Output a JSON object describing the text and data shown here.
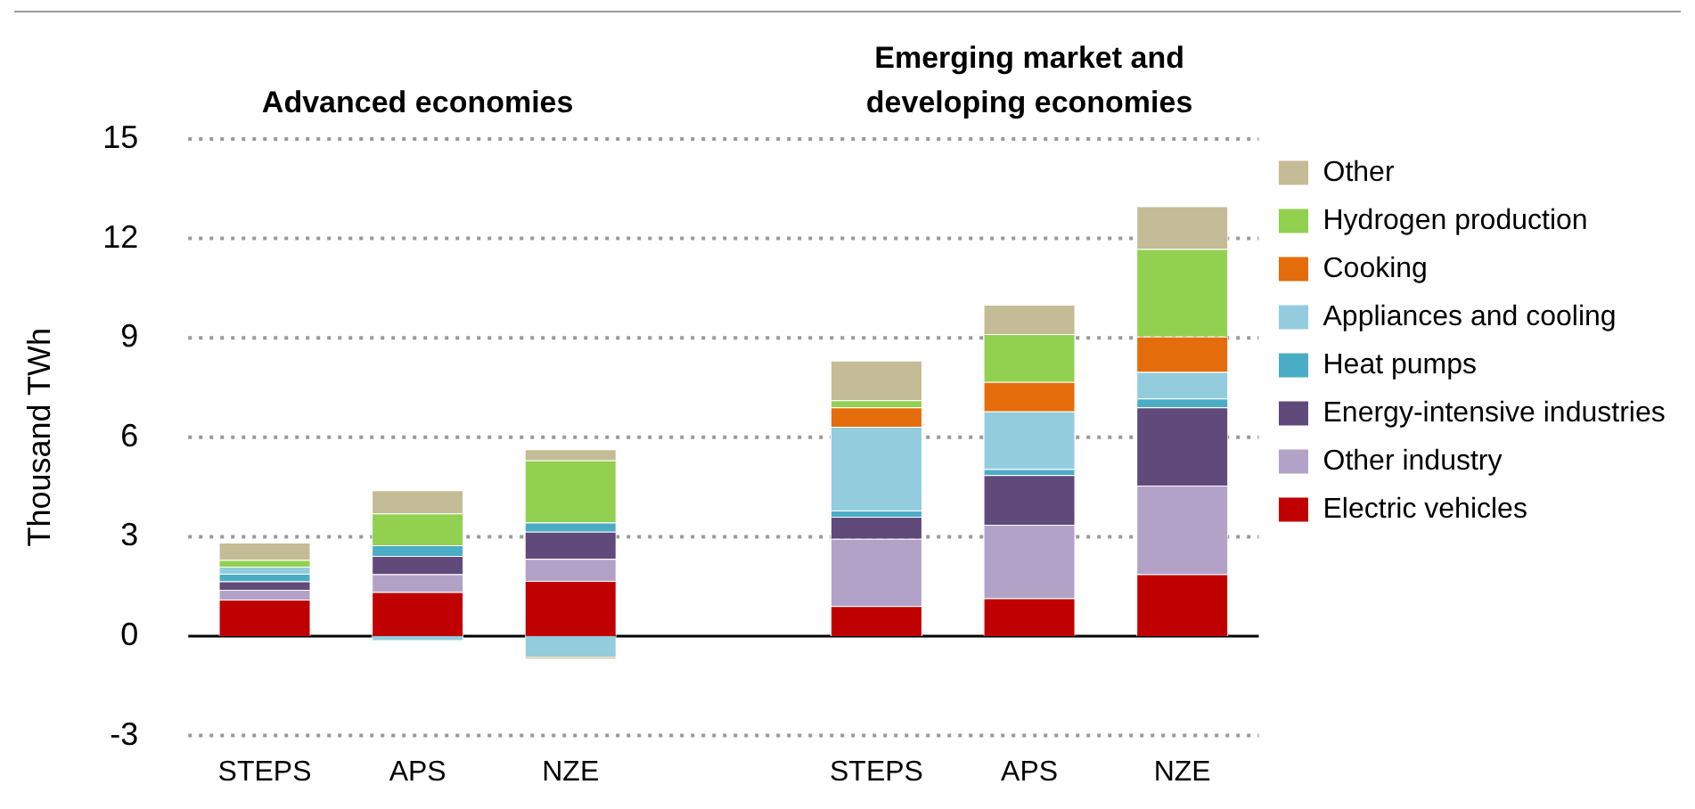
{
  "chart_data": {
    "type": "bar",
    "stacked": true,
    "ylabel": "Thousand TWh",
    "annotations": [
      "Advanced economies",
      "Emerging market and developing economies"
    ],
    "categories": [
      "STEPS",
      "APS",
      "NZE",
      null,
      "STEPS",
      "APS",
      "NZE"
    ],
    "ylim": [
      -3,
      15
    ],
    "yticks": [
      -3,
      0,
      3,
      6,
      9,
      12,
      15
    ],
    "grid": "y",
    "legend": "right",
    "series": [
      {
        "name": "Electric vehicles",
        "color": "#c00000",
        "values": [
          1.1,
          1.33,
          1.67,
          null,
          0.91,
          1.14,
          1.87
        ]
      },
      {
        "name": "Other industry",
        "color": "#b3a2c7",
        "values": [
          0.3,
          0.54,
          0.66,
          null,
          2.03,
          2.22,
          2.67
        ]
      },
      {
        "name": "Energy-intensive industries",
        "color": "#604a7b",
        "values": [
          0.25,
          0.55,
          0.82,
          null,
          0.66,
          1.5,
          2.36
        ]
      },
      {
        "name": "Heat pumps",
        "color": "#4bacc6",
        "values": [
          0.23,
          0.32,
          0.28,
          null,
          0.19,
          0.18,
          0.27
        ]
      },
      {
        "name": "Appliances and cooling",
        "color": "#93cddd",
        "values": [
          0.22,
          -0.15,
          -0.65,
          null,
          2.53,
          1.74,
          0.8
        ]
      },
      {
        "name": "Cooking",
        "color": "#e46c0a",
        "values": [
          0,
          0,
          -0.05,
          null,
          0.58,
          0.89,
          1.07
        ]
      },
      {
        "name": "Hydrogen production",
        "color": "#92d050",
        "values": [
          0.2,
          0.96,
          1.87,
          null,
          0.22,
          1.44,
          2.64
        ]
      },
      {
        "name": "Other",
        "color": "#c4bc96",
        "values": [
          0.52,
          0.7,
          0.34,
          null,
          1.19,
          0.89,
          1.29
        ]
      }
    ]
  }
}
